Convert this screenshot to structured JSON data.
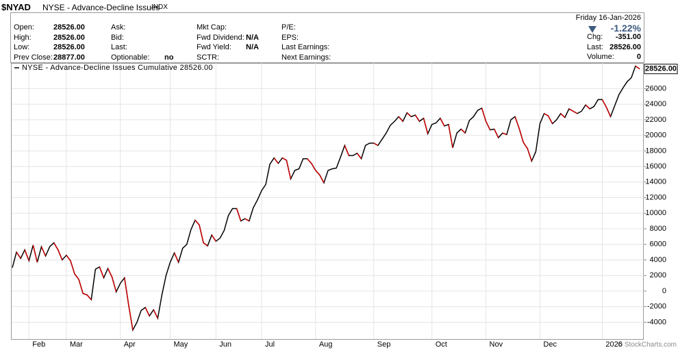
{
  "quote": {
    "symbol": "$NYAD",
    "name": "NYSE - Advance-Decline Issues",
    "exchange": "INDX",
    "date": "Friday  16-Jan-2026",
    "change_pct": "-1.22%",
    "columns": [
      [
        {
          "label": "Open:",
          "value": "28526.00"
        },
        {
          "label": "High:",
          "value": "28526.00"
        },
        {
          "label": "Low:",
          "value": "28526.00"
        },
        {
          "label": "Prev Close:",
          "value": "28877.00"
        }
      ],
      [
        {
          "label": "Ask:"
        },
        {
          "label": "Bid:"
        },
        {
          "label": "Last:"
        },
        {
          "label": "Optionable:",
          "value": "no"
        }
      ],
      [
        {
          "label": "Mkt Cap:"
        },
        {
          "label": "Fwd Dividend:",
          "value": "N/A"
        },
        {
          "label": "Fwd Yield:",
          "value": "N/A"
        },
        {
          "label": "SCTR:"
        }
      ],
      [
        {
          "label": "P/E:"
        },
        {
          "label": "EPS:"
        },
        {
          "label": "Last Earnings:"
        },
        {
          "label": "Next Earnings:"
        }
      ]
    ],
    "right": [
      {
        "label": "Chg:",
        "value": "-351.00"
      },
      {
        "label": "Last:",
        "value": "28526.00"
      },
      {
        "label": "Volume:",
        "value": "0"
      }
    ],
    "last_flag": "28526.00",
    "credit": "© StockCharts.com"
  },
  "chart_data": {
    "type": "line",
    "categories": [
      null,
      null,
      null,
      null,
      "Feb",
      null,
      null,
      null,
      null,
      null,
      null,
      null,
      null,
      "Mar",
      null,
      null,
      null,
      null,
      null,
      null,
      null,
      null,
      null,
      null,
      null,
      null,
      "Apr",
      null,
      null,
      null,
      null,
      null,
      null,
      null,
      null,
      null,
      null,
      null,
      "May",
      null,
      null,
      null,
      null,
      null,
      null,
      null,
      null,
      null,
      null,
      "Jun",
      null,
      null,
      null,
      null,
      null,
      null,
      null,
      null,
      null,
      null,
      "Jul",
      null,
      null,
      null,
      null,
      null,
      null,
      null,
      null,
      null,
      null,
      null,
      null,
      "Aug",
      null,
      null,
      null,
      null,
      null,
      null,
      null,
      null,
      null,
      null,
      null,
      null,
      null,
      "Sep",
      null,
      null,
      null,
      null,
      null,
      null,
      null,
      null,
      null,
      null,
      null,
      null,
      null,
      "Oct",
      null,
      null,
      null,
      null,
      null,
      null,
      null,
      null,
      null,
      null,
      null,
      null,
      "Nov",
      null,
      null,
      null,
      null,
      null,
      null,
      null,
      null,
      null,
      null,
      null,
      null,
      "Dec",
      null,
      null,
      null,
      null,
      null,
      null,
      null,
      null,
      null,
      null,
      null,
      null,
      null,
      null,
      "2026",
      null,
      null,
      null,
      null,
      null,
      null,
      null,
      null,
      null
    ],
    "series": [
      {
        "name": "NYSE - Advance-Decline Issues Cumulative 28526.00",
        "color": "#000000",
        "down_color": "#cc0000",
        "values": [
          3000,
          5000,
          4200,
          5300,
          3900,
          5900,
          3700,
          5700,
          4500,
          5700,
          6200,
          5300,
          4000,
          4600,
          3900,
          2200,
          1500,
          -300,
          -500,
          -1100,
          2800,
          3100,
          1700,
          2900,
          1800,
          -100,
          1000,
          1700,
          -1800,
          -5000,
          -4000,
          -2500,
          -2100,
          -3200,
          -2400,
          -3500,
          -500,
          2000,
          3700,
          4900,
          3700,
          5500,
          6000,
          7900,
          9100,
          8500,
          6200,
          5800,
          7200,
          6400,
          6800,
          7800,
          9700,
          10600,
          10600,
          9000,
          9300,
          9000,
          10700,
          11700,
          12900,
          13700,
          16300,
          17100,
          16400,
          17100,
          16800,
          14400,
          15500,
          15700,
          17000,
          17000,
          16400,
          15500,
          14900,
          13900,
          15500,
          15700,
          15800,
          17200,
          18700,
          17400,
          17400,
          17700,
          17000,
          18700,
          19000,
          19000,
          18700,
          19500,
          20300,
          21300,
          21800,
          22400,
          21800,
          22900,
          22400,
          22600,
          21800,
          22200,
          20200,
          21400,
          21600,
          22200,
          21200,
          21400,
          18400,
          20300,
          20800,
          20300,
          21900,
          22400,
          23200,
          23500,
          21800,
          20700,
          20800,
          19700,
          20300,
          20100,
          22000,
          22400,
          20900,
          19100,
          18300,
          16700,
          17900,
          21500,
          22800,
          22500,
          21500,
          22000,
          22800,
          22300,
          23400,
          23100,
          22800,
          23100,
          23900,
          23400,
          23700,
          24600,
          24600,
          23600,
          22400,
          23800,
          25200,
          26100,
          26900,
          27400,
          28900,
          28526
        ]
      }
    ],
    "ylim": [
      -6160,
      29290
    ],
    "yticks": [
      -4000,
      -2000,
      0,
      2000,
      4000,
      6000,
      8000,
      10000,
      12000,
      14000,
      16000,
      18000,
      20000,
      22000,
      24000,
      26000
    ],
    "grid": true
  }
}
